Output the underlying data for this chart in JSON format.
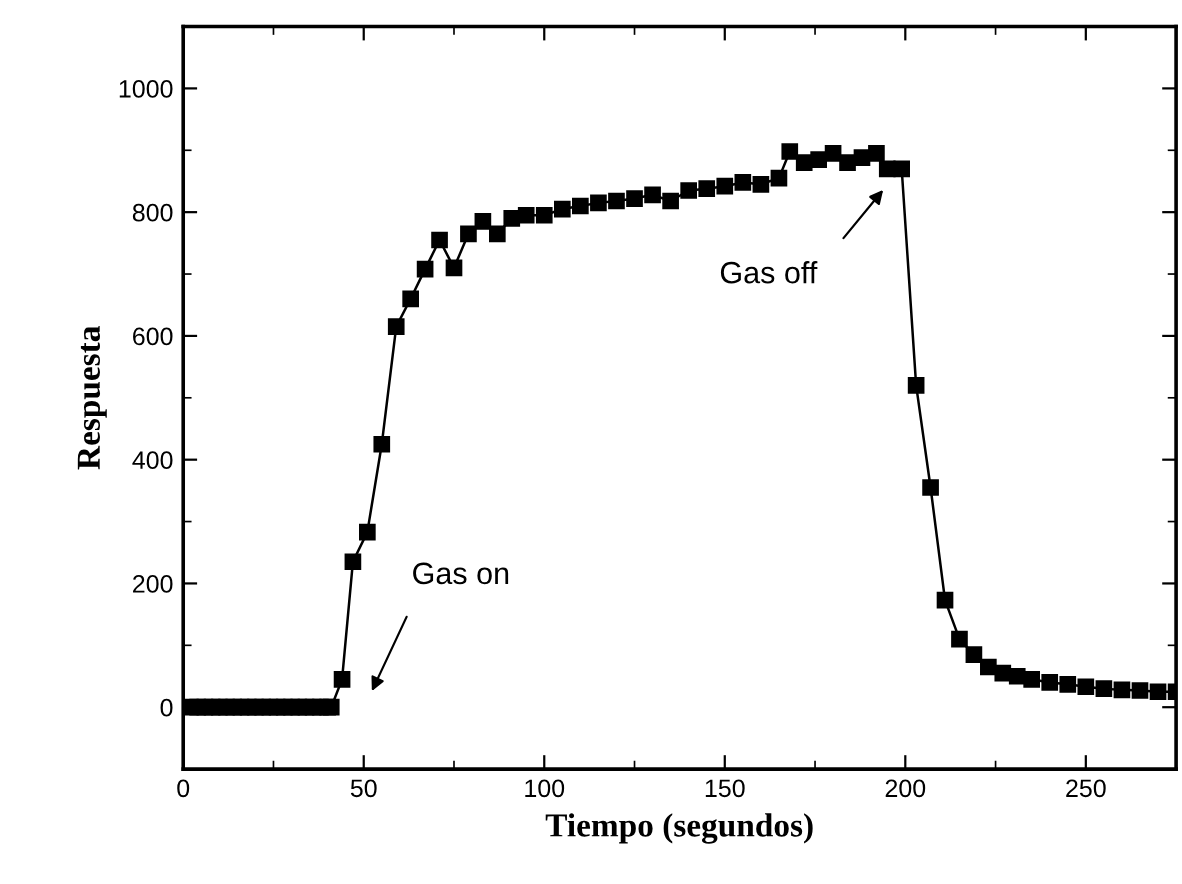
{
  "chart_data": {
    "type": "line",
    "xlabel": "Tiempo (segundos)",
    "ylabel": "Respuesta",
    "xlim": [
      0,
      275
    ],
    "ylim": [
      -100,
      1100
    ],
    "xticks": [
      0,
      50,
      100,
      150,
      200,
      250
    ],
    "yticks": [
      0,
      200,
      400,
      600,
      800,
      1000
    ],
    "grid": false,
    "marker": "square",
    "line_style": "solid",
    "series": [
      {
        "color": "#000000",
        "x": [
          2,
          4,
          6,
          8,
          10,
          12,
          14,
          16,
          18,
          20,
          22,
          24,
          26,
          28,
          30,
          32,
          34,
          36,
          38,
          40,
          41,
          44,
          47,
          51,
          55,
          59,
          63,
          67,
          71,
          75,
          79,
          83,
          87,
          91,
          95,
          100,
          105,
          110,
          115,
          120,
          125,
          130,
          135,
          140,
          145,
          150,
          155,
          160,
          165,
          168,
          172,
          176,
          180,
          184,
          188,
          192,
          195,
          199,
          203,
          207,
          211,
          215,
          219,
          223,
          227,
          231,
          235,
          240,
          245,
          250,
          255,
          260,
          265,
          270,
          275
        ],
        "values": [
          0,
          0,
          0,
          0,
          0,
          0,
          0,
          0,
          0,
          0,
          0,
          0,
          0,
          0,
          0,
          0,
          0,
          0,
          0,
          0,
          0,
          45,
          235,
          283,
          425,
          615,
          660,
          708,
          755,
          710,
          765,
          785,
          765,
          790,
          795,
          795,
          805,
          810,
          815,
          818,
          822,
          828,
          818,
          835,
          838,
          842,
          848,
          845,
          855,
          898,
          880,
          885,
          895,
          880,
          888,
          895,
          870,
          870,
          520,
          355,
          173,
          110,
          85,
          65,
          55,
          50,
          45,
          40,
          37,
          33,
          30,
          28,
          27,
          25,
          25
        ]
      }
    ],
    "annotations": [
      "Gas on",
      "Gas off"
    ]
  }
}
